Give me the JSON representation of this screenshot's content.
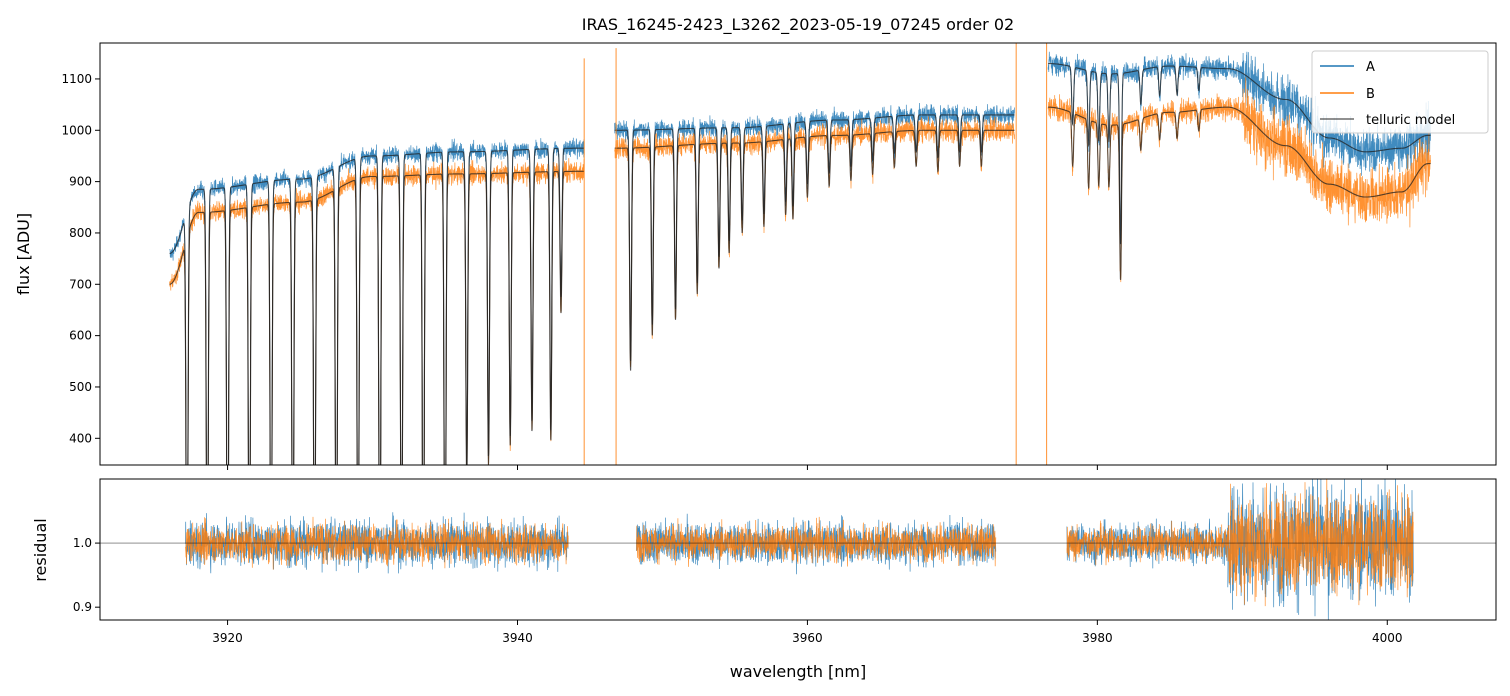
{
  "chart_data": {
    "type": "line",
    "title": "IRAS_16245-2423_L3262_2023-05-19_07245  order 02",
    "colors": {
      "A": "#1f77b4",
      "B": "#ff7f0e",
      "model": "#222222"
    },
    "top": {
      "ylabel": "flux [ADU]",
      "xlim": [
        3911.2,
        4007.5
      ],
      "ylim": [
        348,
        1170
      ],
      "yticks": [
        400,
        500,
        600,
        700,
        800,
        900,
        1000,
        1100
      ],
      "segments": [
        {
          "x_start": 3916.0,
          "x_end": 3944.6,
          "continuum_a_knots": [
            [
              3916.0,
              760
            ],
            [
              3918.0,
              885
            ],
            [
              3925.0,
              905
            ],
            [
              3930.0,
              950
            ],
            [
              3936.0,
              958
            ],
            [
              3944.0,
              965
            ]
          ],
          "continuum_b_knots": [
            [
              3916.0,
              700
            ],
            [
              3918.0,
              840
            ],
            [
              3925.0,
              860
            ],
            [
              3930.0,
              910
            ],
            [
              3936.0,
              915
            ],
            [
              3944.0,
              920
            ]
          ],
          "lines": [
            {
              "x": 3917.2,
              "depth": 0.99
            },
            {
              "x": 3918.6,
              "depth": 0.99
            },
            {
              "x": 3920.0,
              "depth": 0.99
            },
            {
              "x": 3921.5,
              "depth": 0.99
            },
            {
              "x": 3923.0,
              "depth": 0.99
            },
            {
              "x": 3924.5,
              "depth": 0.99
            },
            {
              "x": 3926.0,
              "depth": 0.99
            },
            {
              "x": 3927.5,
              "depth": 0.99
            },
            {
              "x": 3929.0,
              "depth": 0.99
            },
            {
              "x": 3930.5,
              "depth": 0.99
            },
            {
              "x": 3932.0,
              "depth": 0.99
            },
            {
              "x": 3933.5,
              "depth": 0.99
            },
            {
              "x": 3935.0,
              "depth": 0.99
            },
            {
              "x": 3936.5,
              "depth": 0.66
            },
            {
              "x": 3938.0,
              "depth": 0.62
            },
            {
              "x": 3939.5,
              "depth": 0.58
            },
            {
              "x": 3941.0,
              "depth": 0.55
            },
            {
              "x": 3942.3,
              "depth": 0.57
            },
            {
              "x": 3943.0,
              "depth": 0.3
            }
          ]
        },
        {
          "x_start": 3946.7,
          "x_end": 3974.3,
          "continuum_a_knots": [
            [
              3946.7,
              1000
            ],
            [
              3955.0,
              1005
            ],
            [
              3962.0,
              1020
            ],
            [
              3968.0,
              1030
            ],
            [
              3974.0,
              1030
            ]
          ],
          "continuum_b_knots": [
            [
              3946.7,
              965
            ],
            [
              3955.0,
              975
            ],
            [
              3962.0,
              990
            ],
            [
              3968.0,
              1000
            ],
            [
              3974.0,
              1000
            ]
          ],
          "lines": [
            {
              "x": 3947.8,
              "depth": 0.45
            },
            {
              "x": 3949.3,
              "depth": 0.38
            },
            {
              "x": 3950.9,
              "depth": 0.35
            },
            {
              "x": 3952.4,
              "depth": 0.3
            },
            {
              "x": 3953.9,
              "depth": 0.25
            },
            {
              "x": 3954.6,
              "depth": 0.22
            },
            {
              "x": 3955.5,
              "depth": 0.18
            },
            {
              "x": 3957.0,
              "depth": 0.17
            },
            {
              "x": 3958.5,
              "depth": 0.15
            },
            {
              "x": 3959.0,
              "depth": 0.16
            },
            {
              "x": 3960.0,
              "depth": 0.12
            },
            {
              "x": 3961.5,
              "depth": 0.1
            },
            {
              "x": 3963.0,
              "depth": 0.09
            },
            {
              "x": 3964.5,
              "depth": 0.08
            },
            {
              "x": 3966.0,
              "depth": 0.07
            },
            {
              "x": 3967.5,
              "depth": 0.07
            },
            {
              "x": 3969.0,
              "depth": 0.08
            },
            {
              "x": 3970.5,
              "depth": 0.07
            },
            {
              "x": 3972.0,
              "depth": 0.07
            }
          ]
        },
        {
          "x_start": 3976.6,
          "x_end": 4003.0,
          "continuum_a_knots": [
            [
              3976.6,
              1130
            ],
            [
              3981.0,
              1110
            ],
            [
              3985.0,
              1125
            ],
            [
              3989.0,
              1120
            ],
            [
              3993.0,
              1060
            ],
            [
              3996.0,
              985
            ],
            [
              3998.5,
              958
            ],
            [
              4001.0,
              965
            ],
            [
              4002.8,
              990
            ]
          ],
          "continuum_b_knots": [
            [
              3976.6,
              1045
            ],
            [
              3981.0,
              1010
            ],
            [
              3985.0,
              1035
            ],
            [
              3989.0,
              1045
            ],
            [
              3993.0,
              970
            ],
            [
              3996.0,
              895
            ],
            [
              3998.5,
              870
            ],
            [
              4001.0,
              880
            ],
            [
              4002.8,
              935
            ]
          ],
          "lines": [
            {
              "x": 3978.3,
              "depth": 0.1
            },
            {
              "x": 3979.4,
              "depth": 0.13
            },
            {
              "x": 3980.1,
              "depth": 0.12
            },
            {
              "x": 3980.8,
              "depth": 0.12
            },
            {
              "x": 3981.6,
              "depth": 0.3
            },
            {
              "x": 3983.0,
              "depth": 0.06
            },
            {
              "x": 3984.3,
              "depth": 0.05
            },
            {
              "x": 3985.5,
              "depth": 0.05
            },
            {
              "x": 3987.0,
              "depth": 0.04
            }
          ]
        }
      ],
      "spikes": [
        {
          "x": 3944.6,
          "top": 1140
        },
        {
          "x": 3946.8,
          "top": 1160
        },
        {
          "x": 3974.4,
          "top": 1170
        },
        {
          "x": 3976.5,
          "top": 1170
        }
      ]
    },
    "bottom": {
      "ylabel": "residual",
      "xlabel": "wavelength [nm]",
      "ylim": [
        0.88,
        1.1
      ],
      "yticks": [
        0.9,
        1.0
      ],
      "ytick_labels": [
        "0.9",
        "1.0"
      ],
      "xticks": [
        3920,
        3940,
        3960,
        3980,
        4000
      ],
      "reference_line": 1.0,
      "segments": [
        {
          "x_start": 3917.1,
          "x_end": 3943.5,
          "noise": 0.035
        },
        {
          "x_start": 3948.2,
          "x_end": 3973.0,
          "noise": 0.032
        },
        {
          "x_start": 3977.9,
          "x_end": 3989.0,
          "noise": 0.03
        },
        {
          "x_start": 3989.0,
          "x_end": 4001.8,
          "noise": 0.09
        }
      ]
    },
    "legend": {
      "position": "top-right",
      "entries": [
        "A",
        "B",
        "telluric model"
      ]
    }
  }
}
